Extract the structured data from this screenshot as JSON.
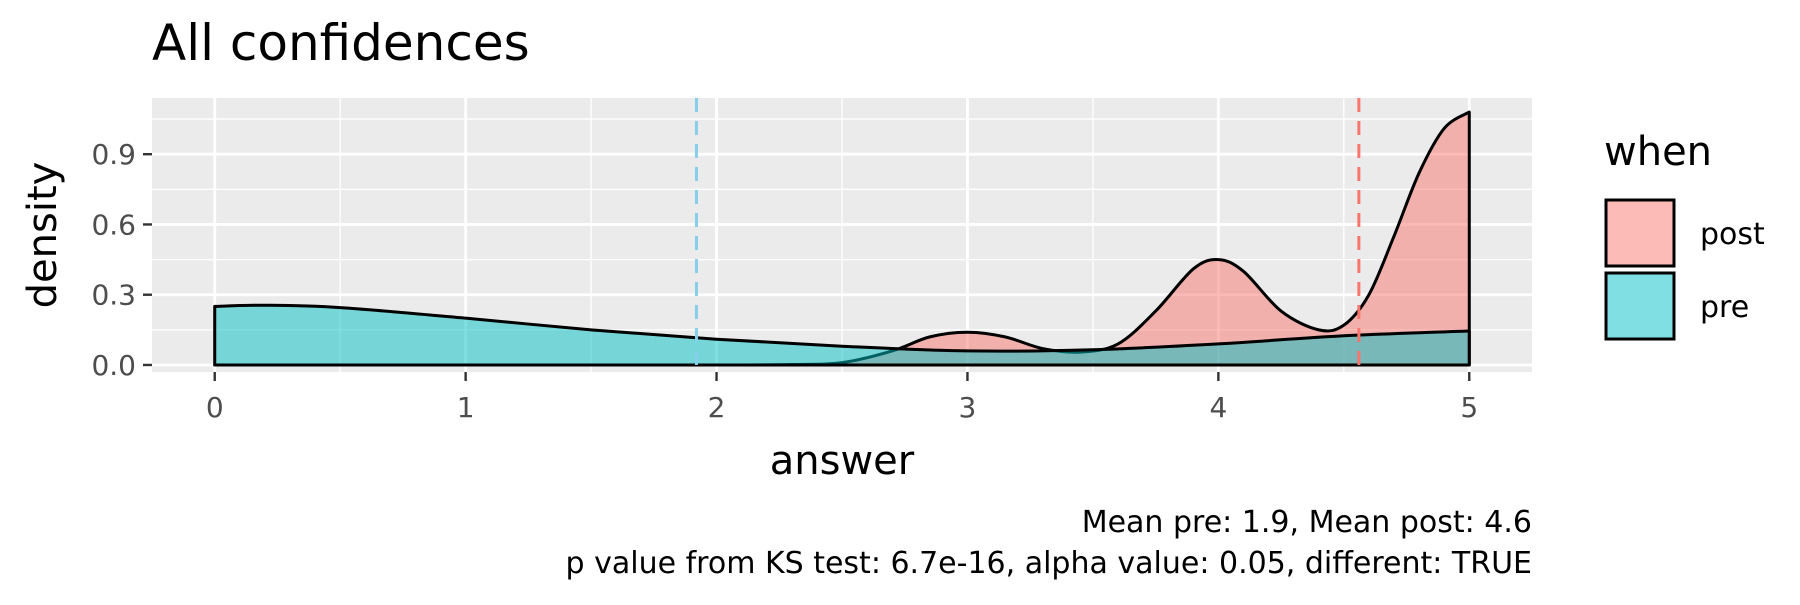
{
  "chart_data": {
    "type": "area",
    "title": "All confidences",
    "xlabel": "answer",
    "ylabel": "density",
    "xlim": [
      -0.25,
      5.25
    ],
    "ylim": [
      -0.03,
      1.14
    ],
    "x_ticks": [
      0,
      1,
      2,
      3,
      4,
      5
    ],
    "x_tick_labels": [
      "0",
      "1",
      "2",
      "3",
      "4",
      "5"
    ],
    "y_ticks": [
      0.0,
      0.3,
      0.6,
      0.9
    ],
    "y_tick_labels": [
      "0.0",
      "0.3",
      "0.6",
      "0.9"
    ],
    "grid": true,
    "panel_background": "#ebebeb",
    "legend": {
      "title": "when",
      "position": "right",
      "entries": [
        {
          "label": "post",
          "color": "#f8766d"
        },
        {
          "label": "pre",
          "color": "#00bfc4"
        }
      ]
    },
    "series": [
      {
        "name": "post",
        "color": "#f8766d",
        "mean": 4.56,
        "x": [
          0,
          0.5,
          1,
          1.5,
          2,
          2.3,
          2.5,
          2.7,
          2.85,
          3.0,
          3.15,
          3.3,
          3.45,
          3.6,
          3.75,
          3.9,
          4.0,
          4.1,
          4.25,
          4.4,
          4.5,
          4.6,
          4.7,
          4.8,
          4.9,
          5.0
        ],
        "y": [
          0,
          0,
          0,
          0,
          0,
          0.002,
          0.01,
          0.06,
          0.12,
          0.14,
          0.12,
          0.07,
          0.055,
          0.09,
          0.23,
          0.41,
          0.45,
          0.4,
          0.23,
          0.15,
          0.17,
          0.3,
          0.55,
          0.82,
          1.01,
          1.08
        ]
      },
      {
        "name": "pre",
        "color": "#00bfc4",
        "mean": 1.92,
        "x": [
          0,
          0.2,
          0.5,
          1.0,
          1.5,
          2.0,
          2.5,
          3.0,
          3.5,
          4.0,
          4.5,
          5.0
        ],
        "y": [
          0.25,
          0.255,
          0.245,
          0.2,
          0.15,
          0.11,
          0.08,
          0.06,
          0.065,
          0.09,
          0.125,
          0.145
        ]
      }
    ],
    "caption": [
      "Mean pre: 1.9, Mean post: 4.6",
      "p value from KS test: 6.7e-16, alpha value: 0.05, different: TRUE"
    ]
  }
}
